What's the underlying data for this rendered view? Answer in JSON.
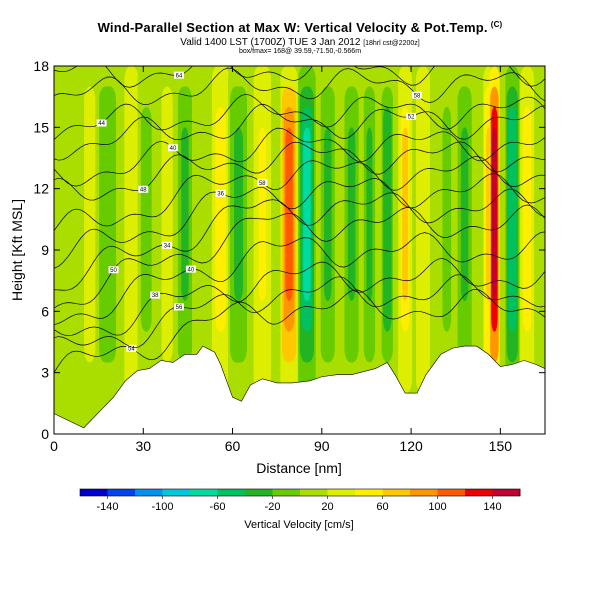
{
  "header": {
    "title": "Wind-Parallel Section at Max W: Vertical Velocity & Pot.Temp.",
    "copyright": "(C)",
    "valid_line": "Valid 1400 LST (1700Z) TUE 3 Jan 2012",
    "valid_suffix": "[18hrl cst@2200z]",
    "subline": "box/fmax= 168@ 39.59,-71.50,-0.566m"
  },
  "chart_data": {
    "type": "heatmap",
    "title": "Vertical Velocity & Pot.Temp.",
    "xlabel": "Distance [nm]",
    "ylabel": "Height [Kft MSL]",
    "xlim": [
      0,
      165
    ],
    "ylim": [
      0,
      18
    ],
    "xticks": [
      0,
      30,
      60,
      90,
      120,
      150
    ],
    "yticks": [
      0,
      3,
      6,
      9,
      12,
      15,
      18
    ],
    "colorbar": {
      "label": "Vertical Velocity [cm/s]",
      "ticks": [
        -140,
        -100,
        -60,
        -20,
        20,
        60,
        100,
        140
      ],
      "range": [
        -160,
        160
      ],
      "colors": [
        "#0000cc",
        "#0044ee",
        "#0090f0",
        "#00c8dc",
        "#00dca0",
        "#00c060",
        "#22b422",
        "#66cc00",
        "#aadd00",
        "#ddee00",
        "#ffee00",
        "#ffc800",
        "#ff9600",
        "#ff5a00",
        "#ee0000",
        "#c00030"
      ]
    },
    "terrain": [
      [
        0,
        1.0
      ],
      [
        10,
        0.3
      ],
      [
        16,
        1.2
      ],
      [
        20,
        1.8
      ],
      [
        24,
        2.6
      ],
      [
        28,
        3.1
      ],
      [
        32,
        3.2
      ],
      [
        36,
        3.6
      ],
      [
        40,
        3.5
      ],
      [
        44,
        3.9
      ],
      [
        48,
        3.9
      ],
      [
        50,
        4.3
      ],
      [
        54,
        4.0
      ],
      [
        56,
        3.4
      ],
      [
        58,
        2.6
      ],
      [
        60,
        1.8
      ],
      [
        63,
        1.6
      ],
      [
        66,
        2.4
      ],
      [
        70,
        2.7
      ],
      [
        75,
        2.5
      ],
      [
        80,
        2.5
      ],
      [
        86,
        2.6
      ],
      [
        90,
        2.8
      ],
      [
        95,
        2.9
      ],
      [
        100,
        2.9
      ],
      [
        108,
        3.2
      ],
      [
        112,
        3.5
      ],
      [
        115,
        2.8
      ],
      [
        118,
        2.0
      ],
      [
        122,
        2.0
      ],
      [
        125,
        2.9
      ],
      [
        130,
        3.9
      ],
      [
        134,
        4.2
      ],
      [
        138,
        4.3
      ],
      [
        142,
        4.3
      ],
      [
        146,
        3.9
      ],
      [
        150,
        3.3
      ],
      [
        154,
        3.4
      ],
      [
        158,
        3.6
      ],
      [
        162,
        3.4
      ],
      [
        165,
        3.2
      ]
    ],
    "velocity_columns": [
      {
        "x": 6,
        "w": 5,
        "v": 10
      },
      {
        "x": 12,
        "w": 4,
        "v": 30
      },
      {
        "x": 18,
        "w": 6,
        "v": -20
      },
      {
        "x": 26,
        "w": 4,
        "v": 35
      },
      {
        "x": 31,
        "w": 5,
        "v": -10
      },
      {
        "x": 38,
        "w": 4,
        "v": 30
      },
      {
        "x": 44,
        "w": 5,
        "v": -25
      },
      {
        "x": 56,
        "w": 5,
        "v": 50
      },
      {
        "x": 62,
        "w": 6,
        "v": -30
      },
      {
        "x": 70,
        "w": 5,
        "v": 40
      },
      {
        "x": 79,
        "w": 5,
        "v": 110
      },
      {
        "x": 85,
        "w": 5,
        "v": -70
      },
      {
        "x": 92,
        "w": 5,
        "v": -30
      },
      {
        "x": 100,
        "w": 5,
        "v": -30
      },
      {
        "x": 106,
        "w": 4,
        "v": -25
      },
      {
        "x": 112,
        "w": 4,
        "v": -40
      },
      {
        "x": 118,
        "w": 4,
        "v": 60
      },
      {
        "x": 124,
        "w": 4,
        "v": 35
      },
      {
        "x": 132,
        "w": 4,
        "v": -15
      },
      {
        "x": 138,
        "w": 5,
        "v": -30
      },
      {
        "x": 146,
        "w": 3,
        "v": 70
      },
      {
        "x": 148,
        "w": 3,
        "v": 168
      },
      {
        "x": 154,
        "w": 4,
        "v": -60
      },
      {
        "x": 159,
        "w": 4,
        "v": 50
      }
    ],
    "theta_contours": [
      {
        "level": "54",
        "y0": 3.0,
        "rise": 3.2,
        "label_x": 26
      },
      {
        "level": "56",
        "y0": 3.9,
        "rise": 3.0,
        "label_x": 42
      },
      {
        "level": "38",
        "y0": 4.7,
        "rise": 3.0,
        "label_x": 34
      },
      {
        "level": "40",
        "y0": 5.6,
        "rise": 3.4,
        "label_x": 46
      },
      {
        "level": "50",
        "y0": 6.4,
        "rise": 3.9,
        "label_x": 20
      },
      {
        "level": "34",
        "y0": 7.3,
        "rise": 3.8,
        "label_x": 38
      },
      {
        "level": "36",
        "y0": 8.5,
        "rise": 3.4,
        "label_x": 56
      },
      {
        "level": "58",
        "y0": 9.8,
        "rise": 3.0,
        "label_x": 70
      },
      {
        "level": "48",
        "y0": 11.6,
        "rise": 2.0,
        "label_x": 30
      },
      {
        "level": "40",
        "y0": 12.6,
        "rise": 1.6,
        "label_x": 40
      },
      {
        "level": "52",
        "y0": 14.1,
        "rise": 1.2,
        "label_x": 120
      },
      {
        "level": "44",
        "y0": 15.0,
        "rise": 0.8,
        "label_x": 16
      },
      {
        "level": "58",
        "y0": 16.5,
        "rise": 0.6,
        "label_x": 122
      },
      {
        "level": "64",
        "y0": 17.6,
        "rise": 0.3,
        "label_x": 42
      }
    ]
  }
}
